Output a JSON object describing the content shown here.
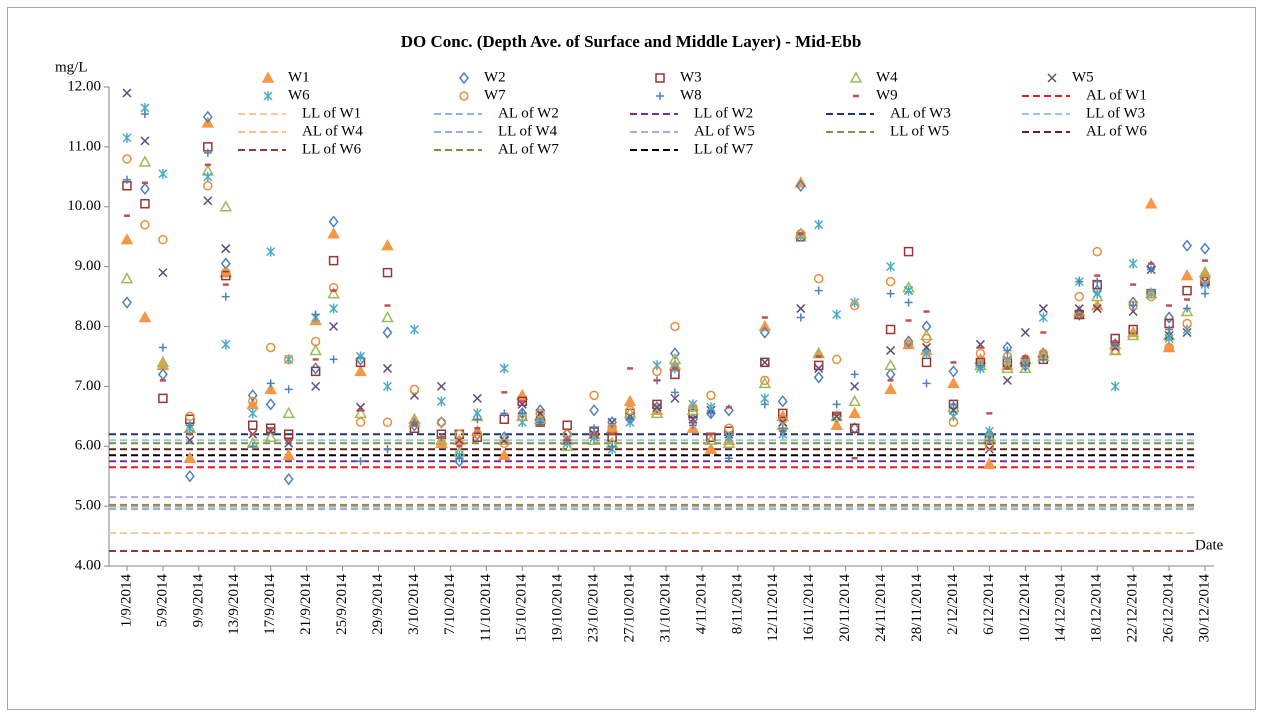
{
  "chart_data": {
    "type": "scatter",
    "title": "DO Conc. (Depth Ave. of Surface and Middle Layer) - Mid-Ebb",
    "y_label": "mg/L",
    "x_label": "Date",
    "x": [
      "1/9/2014",
      "3/9/2014",
      "5/9/2014",
      "8/9/2014",
      "10/9/2014",
      "12/9/2014",
      "15/9/2014",
      "17/9/2014",
      "19/9/2014",
      "22/9/2014",
      "24/9/2014",
      "27/9/2014",
      "30/9/2014",
      "3/10/2014",
      "6/10/2014",
      "8/10/2014",
      "10/10/2014",
      "13/10/2014",
      "15/10/2014",
      "17/10/2014",
      "20/10/2014",
      "23/10/2014",
      "25/10/2014",
      "27/10/2014",
      "30/10/2014",
      "1/11/2014",
      "3/11/2014",
      "5/11/2014",
      "7/11/2014",
      "11/11/2014",
      "13/11/2014",
      "15/11/2014",
      "17/11/2014",
      "19/11/2014",
      "21/11/2014",
      "25/11/2014",
      "27/11/2014",
      "29/11/2014",
      "2/12/2014",
      "5/12/2014",
      "6/12/2014",
      "8/12/2014",
      "10/12/2014",
      "12/12/2014",
      "16/12/2014",
      "18/12/2014",
      "20/12/2014",
      "22/12/2014",
      "24/12/2014",
      "26/12/2014",
      "28/12/2014",
      "30/12/2014"
    ],
    "xlim": [
      "30/8/2014",
      "31/12/2014"
    ],
    "xticks": [
      "1/9/2014",
      "5/9/2014",
      "9/9/2014",
      "13/9/2014",
      "17/9/2014",
      "21/9/2014",
      "25/9/2014",
      "29/9/2014",
      "3/10/2014",
      "7/10/2014",
      "11/10/2014",
      "15/10/2014",
      "19/10/2014",
      "23/10/2014",
      "27/10/2014",
      "31/10/2014",
      "4/11/2014",
      "8/11/2014",
      "12/11/2014",
      "16/11/2014",
      "20/11/2014",
      "24/11/2014",
      "28/11/2014",
      "2/12/2014",
      "6/12/2014",
      "10/12/2014",
      "14/12/2014",
      "18/12/2014",
      "22/12/2014",
      "26/12/2014",
      "30/12/2014"
    ],
    "ylim": [
      4,
      12
    ],
    "yticks": [
      {
        "value": 4,
        "label": "4.00"
      },
      {
        "value": 5,
        "label": "5.00"
      },
      {
        "value": 6,
        "label": "6.00"
      },
      {
        "value": 7,
        "label": "7.00"
      },
      {
        "value": 8,
        "label": "8.00"
      },
      {
        "value": 9,
        "label": "9.00"
      },
      {
        "value": 10,
        "label": "10.00"
      },
      {
        "value": 11,
        "label": "11.00"
      },
      {
        "value": 12,
        "label": "12.00"
      }
    ],
    "series": [
      {
        "name": "W1",
        "color": "#f79646",
        "marker": "triangle-filled",
        "values": [
          9.45,
          8.15,
          7.35,
          5.8,
          11.4,
          8.9,
          6.7,
          6.95,
          5.85,
          8.1,
          9.55,
          7.25,
          9.35,
          6.45,
          6.05,
          6.1,
          6.25,
          5.85,
          6.85,
          6.5,
          6.1,
          6.2,
          6.3,
          6.75,
          6.6,
          7.35,
          6.3,
          5.95,
          6.1,
          8.0,
          6.5,
          10.4,
          7.55,
          6.35,
          6.55,
          6.95,
          7.7,
          7.6,
          7.05,
          7.45,
          5.7,
          7.35,
          7.45,
          7.55,
          8.2,
          8.35,
          7.7,
          7.9,
          10.05,
          7.65,
          8.85,
          8.9
        ]
      },
      {
        "name": "W2",
        "color": "#4f81bd",
        "marker": "diamond",
        "values": [
          8.4,
          10.3,
          7.2,
          5.5,
          11.5,
          9.05,
          6.85,
          6.7,
          5.45,
          7.3,
          9.75,
          7.45,
          7.9,
          6.35,
          6.4,
          5.75,
          6.2,
          6.15,
          6.55,
          6.6,
          6.2,
          6.6,
          6.4,
          6.45,
          6.65,
          7.55,
          6.45,
          6.55,
          6.6,
          7.9,
          6.75,
          10.35,
          7.15,
          6.5,
          6.3,
          7.2,
          7.75,
          8.0,
          7.25,
          7.35,
          6.2,
          7.65,
          7.35,
          7.55,
          8.2,
          8.6,
          7.7,
          8.4,
          9.0,
          8.15,
          9.35,
          9.3
        ]
      },
      {
        "name": "W3",
        "color": "#953735",
        "marker": "square",
        "values": [
          10.35,
          10.05,
          6.8,
          6.45,
          11.0,
          8.85,
          6.35,
          6.3,
          6.2,
          7.25,
          9.1,
          7.4,
          8.9,
          6.3,
          6.2,
          6.2,
          6.15,
          6.45,
          6.75,
          6.4,
          6.35,
          6.25,
          6.15,
          6.55,
          6.7,
          7.2,
          6.55,
          6.15,
          6.25,
          7.4,
          6.55,
          9.5,
          7.35,
          6.5,
          6.3,
          7.95,
          9.25,
          7.4,
          6.7,
          7.4,
          6.1,
          7.4,
          7.4,
          7.45,
          8.2,
          8.7,
          7.8,
          7.95,
          8.55,
          8.05,
          8.6,
          8.75
        ]
      },
      {
        "name": "W4",
        "color": "#9bbb59",
        "marker": "triangle",
        "values": [
          8.8,
          10.75,
          7.4,
          6.3,
          10.6,
          10.0,
          6.05,
          6.15,
          6.55,
          7.6,
          8.55,
          6.55,
          8.15,
          6.4,
          6.1,
          5.9,
          6.5,
          6.1,
          6.5,
          6.45,
          6.0,
          6.1,
          6.05,
          6.55,
          6.55,
          7.45,
          6.6,
          6.1,
          6.05,
          7.05,
          6.35,
          9.55,
          7.55,
          6.5,
          6.75,
          7.35,
          8.65,
          7.85,
          6.65,
          7.35,
          6.15,
          7.3,
          7.3,
          7.5,
          8.25,
          8.5,
          7.6,
          7.85,
          8.55,
          7.85,
          8.25,
          8.9
        ]
      },
      {
        "name": "W5",
        "color": "#604a7b",
        "marker": "x",
        "values": [
          11.9,
          11.1,
          8.9,
          6.1,
          10.1,
          9.3,
          6.2,
          6.25,
          6.05,
          7.0,
          8.0,
          6.65,
          7.3,
          6.85,
          7.0,
          6.1,
          6.8,
          6.1,
          6.7,
          6.55,
          6.1,
          6.2,
          6.4,
          6.5,
          6.65,
          6.8,
          6.45,
          6.6,
          6.2,
          7.4,
          6.4,
          8.3,
          7.3,
          6.5,
          7.0,
          7.6,
          8.6,
          7.65,
          6.6,
          7.7,
          5.95,
          7.1,
          7.9,
          8.3,
          8.3,
          8.3,
          7.65,
          8.25,
          8.95,
          7.85,
          7.9,
          8.75
        ]
      },
      {
        "name": "W6",
        "color": "#4bacc6",
        "marker": "asterisk",
        "values": [
          11.15,
          11.65,
          10.55,
          6.3,
          10.5,
          7.7,
          6.55,
          9.25,
          7.45,
          8.15,
          8.3,
          7.5,
          7.0,
          7.95,
          6.75,
          5.85,
          6.55,
          7.3,
          6.4,
          6.4,
          6.05,
          6.15,
          5.95,
          6.4,
          7.35,
          7.3,
          6.7,
          6.65,
          6.15,
          6.8,
          6.2,
          9.5,
          9.7,
          8.2,
          8.4,
          9.0,
          8.6,
          7.55,
          6.5,
          7.3,
          6.25,
          7.45,
          7.4,
          8.15,
          8.75,
          8.55,
          7.0,
          9.05,
          8.55,
          7.8,
          7.95,
          8.7
        ]
      },
      {
        "name": "W7",
        "color": "#e3913e",
        "marker": "circle",
        "values": [
          10.8,
          9.7,
          9.45,
          6.5,
          10.35,
          8.9,
          6.75,
          7.65,
          7.45,
          7.75,
          8.65,
          6.4,
          6.4,
          6.95,
          6.4,
          6.2,
          6.2,
          6.05,
          6.5,
          6.55,
          6.2,
          6.85,
          6.3,
          6.6,
          7.25,
          8.0,
          6.65,
          6.85,
          6.3,
          7.1,
          6.45,
          9.55,
          8.8,
          7.45,
          8.35,
          8.75,
          7.7,
          7.8,
          6.4,
          7.55,
          6.0,
          7.5,
          7.45,
          7.55,
          8.5,
          9.25,
          7.6,
          8.35,
          8.5,
          7.65,
          8.05,
          8.8
        ]
      },
      {
        "name": "W8",
        "color": "#4f81bd",
        "marker": "plus",
        "values": [
          10.45,
          11.55,
          7.65,
          6.35,
          10.9,
          8.5,
          6.0,
          7.05,
          6.95,
          8.2,
          7.45,
          5.75,
          5.95,
          6.4,
          6.15,
          5.8,
          6.45,
          6.55,
          6.55,
          6.4,
          6.1,
          6.3,
          6.0,
          6.45,
          7.1,
          6.9,
          6.35,
          6.55,
          5.8,
          6.7,
          6.3,
          8.15,
          8.6,
          6.7,
          7.2,
          8.55,
          8.4,
          7.05,
          6.7,
          7.35,
          6.1,
          7.6,
          7.35,
          7.45,
          8.75,
          8.75,
          7.7,
          8.35,
          8.95,
          7.95,
          8.3,
          8.55
        ]
      },
      {
        "name": "W9",
        "color": "#c0504d",
        "marker": "dash",
        "values": [
          9.85,
          10.4,
          7.1,
          6.2,
          10.7,
          8.7,
          6.2,
          6.3,
          6.1,
          7.45,
          8.6,
          6.6,
          8.35,
          6.35,
          6.15,
          6.0,
          6.3,
          6.9,
          6.75,
          6.35,
          6.1,
          6.2,
          6.2,
          7.3,
          7.1,
          7.3,
          6.4,
          6.2,
          6.65,
          8.15,
          6.25,
          9.55,
          7.5,
          6.55,
          5.8,
          7.1,
          8.1,
          8.25,
          7.4,
          7.65,
          6.55,
          7.3,
          7.5,
          7.9,
          8.2,
          8.85,
          7.75,
          8.7,
          9.05,
          8.35,
          8.45,
          9.1
        ]
      }
    ],
    "reference_lines": [
      {
        "name": "AL of W1",
        "color": "#e02020",
        "value": 5.65
      },
      {
        "name": "LL of W1",
        "color": "#f8c99a",
        "value": 4.55
      },
      {
        "name": "AL of W2",
        "color": "#8db4e2",
        "value": 5.0
      },
      {
        "name": "LL of W2",
        "color": "#7030a0",
        "value": 5.75
      },
      {
        "name": "AL of W3",
        "color": "#1f3864",
        "value": 6.2
      },
      {
        "name": "LL of W3",
        "color": "#9dc3e6",
        "value": 6.1
      },
      {
        "name": "AL of W4",
        "color": "#fac090",
        "value": 4.97
      },
      {
        "name": "LL of W4",
        "color": "#95b3d7",
        "value": 4.95
      },
      {
        "name": "AL of W5",
        "color": "#b4a7d6",
        "value": 5.15
      },
      {
        "name": "LL of W5",
        "color": "#948a54",
        "value": 5.02
      },
      {
        "name": "AL of W6",
        "color": "#632523",
        "value": 5.95
      },
      {
        "name": "LL of W6",
        "color": "#953735",
        "value": 4.25
      },
      {
        "name": "AL of W7",
        "color": "#77933c",
        "value": 6.05
      },
      {
        "name": "LL of W7",
        "color": "#000000",
        "value": 5.85
      }
    ]
  }
}
